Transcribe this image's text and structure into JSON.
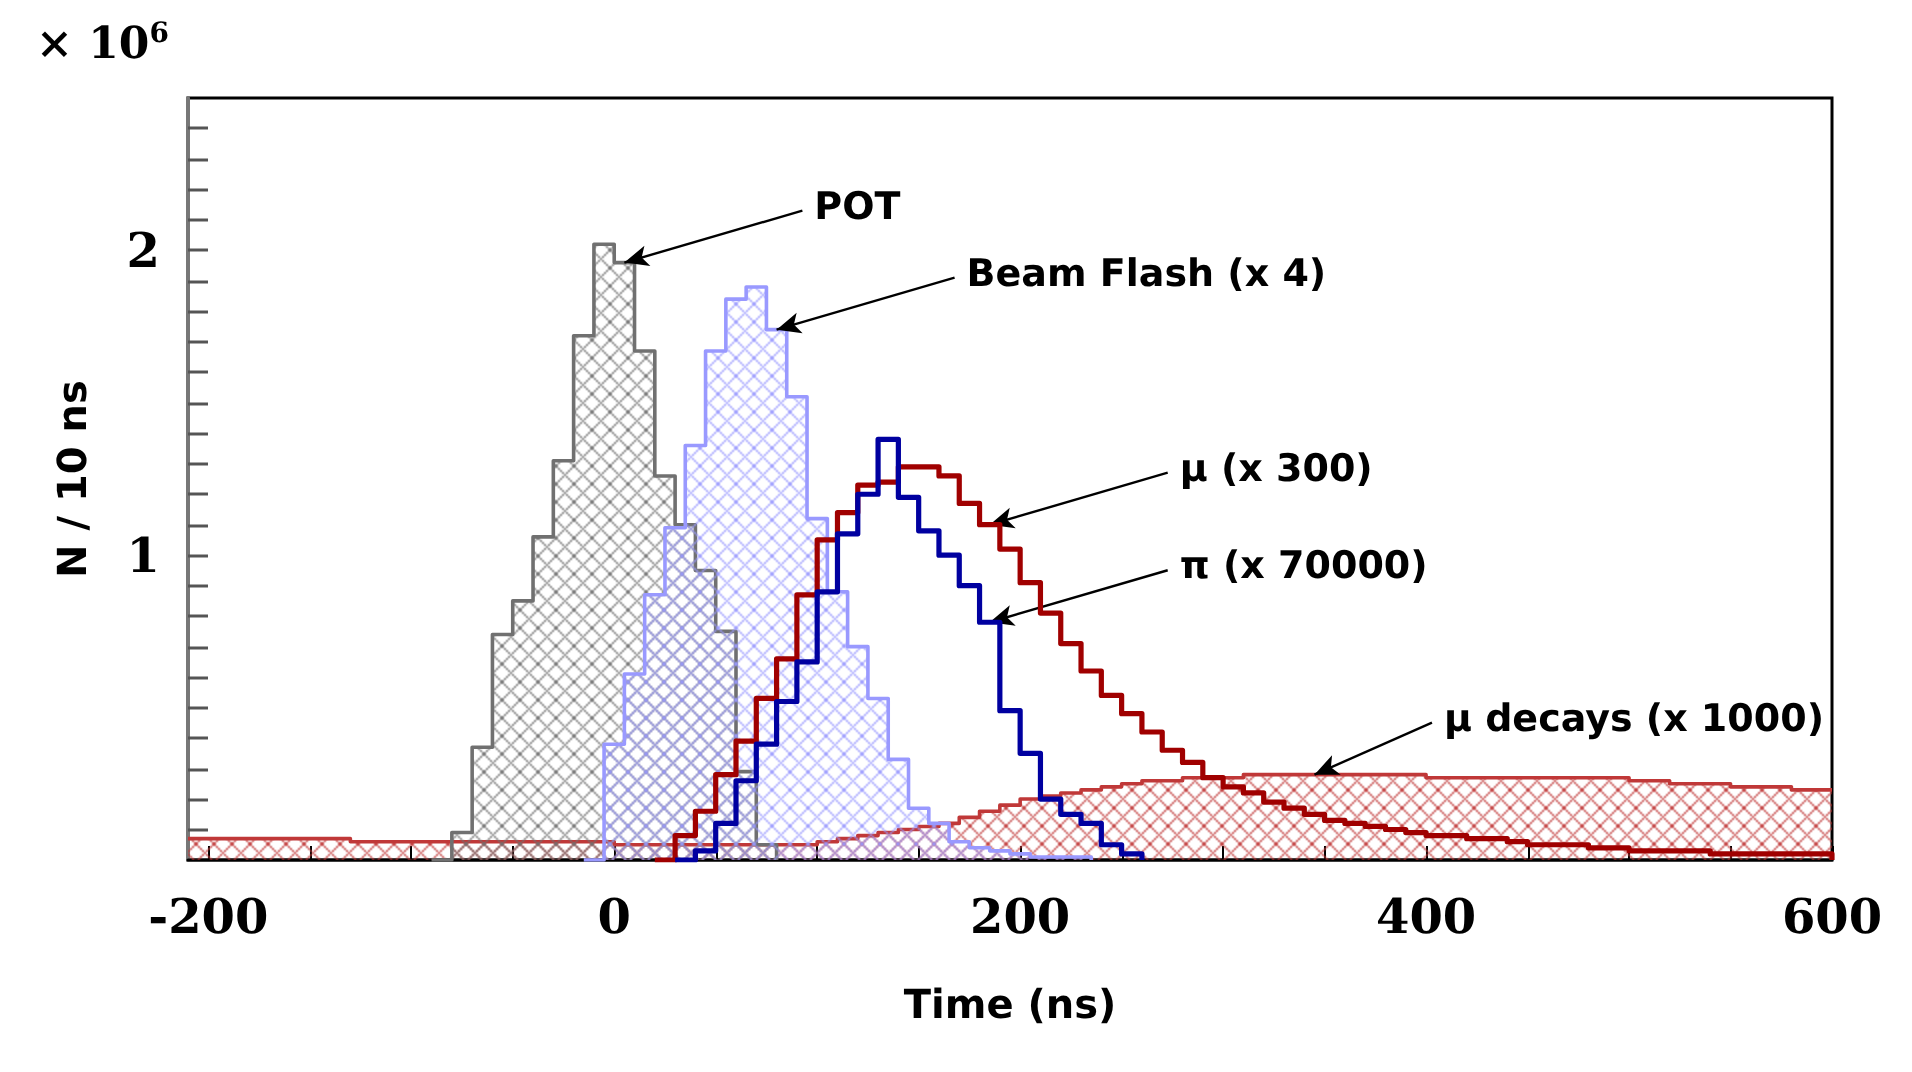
{
  "chart_data": {
    "type": "step",
    "xlabel": "Time (ns)",
    "ylabel": "N / 10 ns",
    "xlim": [
      -210,
      600
    ],
    "xticks": [
      -200,
      {
        "value": -150,
        "label": null
      },
      {
        "value": -100,
        "label": null
      },
      {
        "value": -50,
        "label": null
      },
      0,
      {
        "value": 50,
        "label": null
      },
      {
        "value": 100,
        "label": null
      },
      {
        "value": 150,
        "label": null
      },
      200,
      {
        "value": 250,
        "label": null
      },
      {
        "value": 300,
        "label": null
      },
      {
        "value": 350,
        "label": null
      },
      400,
      {
        "value": 450,
        "label": null
      },
      {
        "value": 500,
        "label": null
      },
      {
        "value": 550,
        "label": null
      },
      600
    ],
    "ylim": [
      0,
      2.5
    ],
    "yticks": [
      {
        "value": 0.1,
        "label": null
      },
      {
        "value": 0.2,
        "label": null
      },
      {
        "value": 0.3,
        "label": null
      },
      {
        "value": 0.4,
        "label": null
      },
      {
        "value": 0.5,
        "label": null
      },
      {
        "value": 0.6,
        "label": null
      },
      {
        "value": 0.7,
        "label": null
      },
      {
        "value": 0.8,
        "label": null
      },
      {
        "value": 0.9,
        "label": null
      },
      1,
      {
        "value": 1.1,
        "label": null
      },
      {
        "value": 1.2,
        "label": null
      },
      {
        "value": 1.3,
        "label": null
      },
      {
        "value": 1.4,
        "label": null
      },
      {
        "value": 1.5,
        "label": null
      },
      {
        "value": 1.6,
        "label": null
      },
      {
        "value": 1.7,
        "label": null
      },
      {
        "value": 1.8,
        "label": null
      },
      {
        "value": 1.9,
        "label": null
      },
      2,
      {
        "value": 2.1,
        "label": null
      },
      {
        "value": 2.2,
        "label": null
      },
      {
        "value": 2.3,
        "label": null
      },
      {
        "value": 2.4,
        "label": null
      }
    ],
    "series": [
      {
        "type": "area",
        "color": "#c03838",
        "x": [
          -210,
          -200,
          -190,
          -180,
          -170,
          -160,
          -150,
          -140,
          -130,
          -120,
          -110,
          -100,
          -90,
          -80,
          -70,
          -60,
          -50,
          -40,
          -30,
          -20,
          -10,
          0,
          10,
          20,
          30,
          40,
          50,
          60,
          70,
          80,
          90,
          100,
          110,
          120,
          130,
          140,
          150,
          160,
          170,
          180,
          190,
          200,
          210,
          220,
          230,
          240,
          250,
          260,
          270,
          280,
          290,
          300,
          310,
          320,
          330,
          340,
          350,
          360,
          370,
          380,
          390,
          400,
          410,
          420,
          430,
          440,
          450,
          460,
          470,
          480,
          490,
          500,
          510,
          520,
          530,
          540,
          550,
          560,
          570,
          580,
          590,
          600
        ],
        "values": [
          0.07,
          0.07,
          0.07,
          0.07,
          0.07,
          0.07,
          0.07,
          0.07,
          0.06,
          0.06,
          0.06,
          0.06,
          0.06,
          0.06,
          0.06,
          0.06,
          0.06,
          0.06,
          0.06,
          0.06,
          0.06,
          0.05,
          0.05,
          0.05,
          0.05,
          0.05,
          0.05,
          0.05,
          0.05,
          0.05,
          0.05,
          0.06,
          0.07,
          0.08,
          0.09,
          0.1,
          0.11,
          0.12,
          0.14,
          0.16,
          0.18,
          0.2,
          0.21,
          0.22,
          0.23,
          0.24,
          0.25,
          0.26,
          0.26,
          0.27,
          0.27,
          0.27,
          0.28,
          0.28,
          0.28,
          0.28,
          0.28,
          0.28,
          0.28,
          0.28,
          0.28,
          0.27,
          0.27,
          0.27,
          0.27,
          0.27,
          0.27,
          0.27,
          0.27,
          0.27,
          0.27,
          0.26,
          0.26,
          0.25,
          0.25,
          0.25,
          0.24,
          0.24,
          0.24,
          0.23,
          0.23,
          0.23
        ]
      },
      {
        "type": "area",
        "color": "#707070",
        "x": [
          -90,
          -80,
          -70,
          -60,
          -50,
          -40,
          -30,
          -20,
          -10,
          0,
          10,
          20,
          30,
          40,
          50,
          60,
          70,
          80
        ],
        "values": [
          0,
          0.09,
          0.37,
          0.74,
          0.85,
          1.06,
          1.31,
          1.72,
          2.02,
          1.96,
          1.67,
          1.26,
          1.1,
          0.95,
          0.75,
          0.29,
          0.05,
          0
        ]
      },
      {
        "type": "area",
        "color": "#9999ff",
        "x": [
          -15,
          -5,
          5,
          15,
          25,
          35,
          45,
          55,
          65,
          75,
          85,
          95,
          105,
          115,
          125,
          135,
          145,
          155,
          165,
          175,
          185,
          195,
          205,
          215,
          225,
          235
        ],
        "values": [
          0,
          0.38,
          0.61,
          0.87,
          1.09,
          1.36,
          1.67,
          1.84,
          1.88,
          1.74,
          1.52,
          1.12,
          0.88,
          0.7,
          0.53,
          0.33,
          0.17,
          0.12,
          0.06,
          0.04,
          0.03,
          0.02,
          0.01,
          0.01,
          0.01,
          0
        ]
      },
      {
        "color": "#a00000",
        "x": [
          20,
          30,
          40,
          50,
          60,
          70,
          80,
          90,
          100,
          110,
          120,
          130,
          140,
          150,
          160,
          170,
          180,
          190,
          200,
          210,
          220,
          230,
          240,
          250,
          260,
          270,
          280,
          290,
          300,
          310,
          320,
          330,
          340,
          350,
          360,
          370,
          380,
          390,
          400,
          410,
          420,
          430,
          440,
          450,
          460,
          470,
          480,
          490,
          500,
          510,
          520,
          530,
          540,
          550,
          560,
          570,
          580,
          590,
          600
        ],
        "values": [
          0,
          0.08,
          0.16,
          0.28,
          0.39,
          0.53,
          0.66,
          0.87,
          1.05,
          1.14,
          1.23,
          1.24,
          1.29,
          1.29,
          1.26,
          1.17,
          1.1,
          1.02,
          0.91,
          0.81,
          0.71,
          0.62,
          0.54,
          0.48,
          0.42,
          0.36,
          0.32,
          0.27,
          0.24,
          0.22,
          0.19,
          0.17,
          0.15,
          0.13,
          0.12,
          0.11,
          0.1,
          0.09,
          0.08,
          0.08,
          0.07,
          0.07,
          0.06,
          0.05,
          0.05,
          0.05,
          0.04,
          0.04,
          0.03,
          0.03,
          0.03,
          0.03,
          0.02,
          0.02,
          0.02,
          0.02,
          0.02,
          0.02,
          0
        ]
      },
      {
        "color": "#0000a0",
        "x": [
          30,
          40,
          50,
          60,
          70,
          80,
          90,
          100,
          110,
          120,
          130,
          140,
          150,
          160,
          170,
          180,
          190,
          200,
          210,
          220,
          230,
          240,
          250,
          260
        ],
        "values": [
          0,
          0.03,
          0.12,
          0.26,
          0.38,
          0.52,
          0.65,
          0.88,
          1.07,
          1.2,
          1.38,
          1.19,
          1.08,
          1.0,
          0.9,
          0.78,
          0.49,
          0.35,
          0.2,
          0.15,
          0.12,
          0.05,
          0.02,
          0
        ]
      }
    ],
    "annotations": [
      "× 10$^{6}$",
      {
        "text": "POT",
        "x": 5,
        "y": 1.96
      },
      {
        "text": "Beam Flash (x 4)",
        "x": 80,
        "y": 1.74
      },
      {
        "text": "μ (x 300)",
        "x": 185,
        "y": 1.1
      },
      {
        "text": "π (x 70000)",
        "x": 185,
        "y": 0.78
      },
      {
        "text": "μ decays (x 1000)",
        "x": 345,
        "y": 0.28
      }
    ]
  }
}
